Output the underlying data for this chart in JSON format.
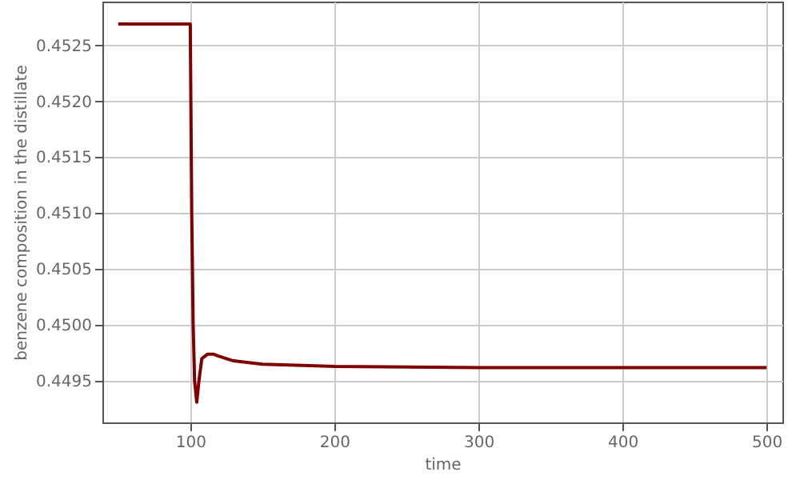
{
  "chart_data": {
    "type": "line",
    "xlabel": "time",
    "ylabel": "benzene composition in the distillate",
    "x": [
      50,
      100,
      101,
      102,
      103,
      104.5,
      106,
      108,
      112,
      116,
      120,
      130,
      150,
      200,
      300,
      400,
      500
    ],
    "series": [
      {
        "color": "#800000",
        "values": [
          0.45269,
          0.45269,
          0.451,
          0.45,
          0.4495,
          0.44931,
          0.4495,
          0.4497,
          0.44974,
          0.44974,
          0.44972,
          0.44968,
          0.44965,
          0.44963,
          0.44962,
          0.44962,
          0.44962
        ]
      }
    ],
    "xlim": [
      39,
      511
    ],
    "ylim": [
      0.44913,
      0.45289
    ],
    "xticks": [
      100,
      200,
      300,
      400,
      500
    ],
    "yticks": [
      0.4495,
      {
        "value": 0.45,
        "label": "0.4500"
      },
      0.4505,
      {
        "value": 0.451,
        "label": "0.4510"
      },
      0.4515,
      {
        "value": 0.452,
        "label": "0.4520"
      },
      0.4525
    ],
    "grid": true,
    "marker": "none",
    "line_style": "solid"
  }
}
